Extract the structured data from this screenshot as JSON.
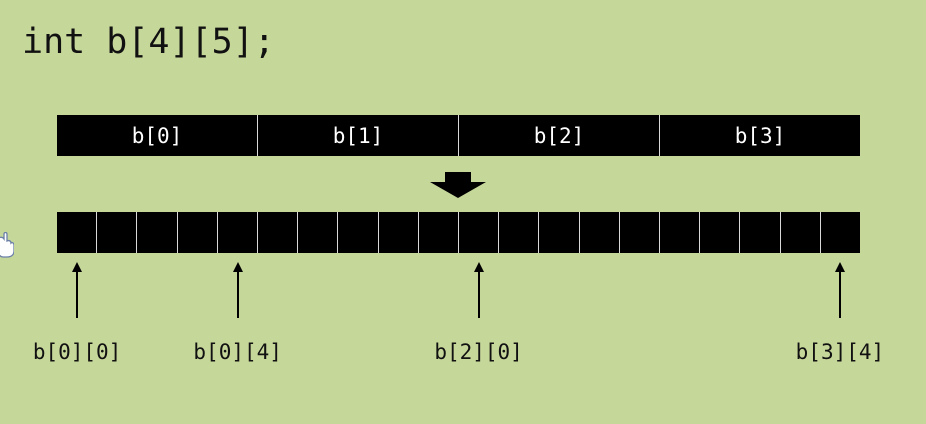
{
  "declaration": "int b[4][5];",
  "rows": [
    "b[0]",
    "b[1]",
    "b[2]",
    "b[3]"
  ],
  "cell_count": 20,
  "pointers": [
    {
      "label": "b[0][0]",
      "index": 0
    },
    {
      "label": "b[0][4]",
      "index": 4
    },
    {
      "label": "b[2][0]",
      "index": 10
    },
    {
      "label": "b[3][4]",
      "index": 19
    }
  ],
  "colors": {
    "background": "#c6d79a",
    "bar": "#000000",
    "divider": "#d9d9d9",
    "text": "#111111"
  }
}
